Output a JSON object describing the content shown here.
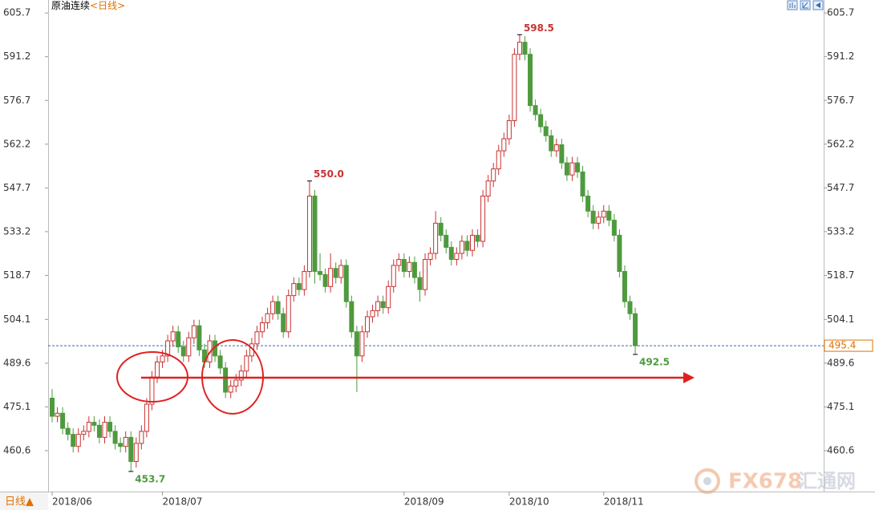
{
  "chart_data": {
    "type": "candlestick",
    "title": "原油连续",
    "subtitle": "<日线>",
    "period_button": "日线▲",
    "up_color": "#c83232",
    "down_color": "#4e9a3e",
    "ylim": [
      447.3,
      610.0
    ],
    "yticks": [
      605.7,
      591.2,
      576.7,
      562.2,
      547.7,
      533.2,
      518.7,
      504.1,
      489.6,
      475.1,
      460.6
    ],
    "current_price": 495.4,
    "categories": [
      "2018/06",
      null,
      null,
      null,
      null,
      null,
      null,
      null,
      null,
      null,
      null,
      null,
      null,
      null,
      null,
      null,
      null,
      null,
      null,
      null,
      null,
      "2018/07",
      null,
      null,
      null,
      null,
      null,
      null,
      null,
      null,
      null,
      null,
      null,
      null,
      null,
      null,
      null,
      null,
      null,
      null,
      null,
      null,
      null,
      null,
      null,
      null,
      null,
      null,
      null,
      null,
      null,
      null,
      null,
      null,
      null,
      null,
      null,
      null,
      null,
      null,
      null,
      null,
      null,
      null,
      null,
      null,
      null,
      "2018/09",
      null,
      null,
      null,
      null,
      null,
      null,
      null,
      null,
      null,
      null,
      null,
      null,
      null,
      null,
      null,
      null,
      null,
      null,
      null,
      "2018/10",
      null,
      null,
      null,
      null,
      null,
      null,
      null,
      null,
      null,
      null,
      null,
      null,
      null,
      null,
      null,
      null,
      null,
      "2018/11",
      null,
      null,
      null,
      null,
      null,
      null
    ],
    "open": [
      478,
      472,
      473,
      468,
      466,
      462,
      466,
      467,
      470,
      469,
      465,
      470,
      467,
      463,
      462,
      465,
      457,
      463,
      467,
      476,
      485,
      490,
      492,
      497,
      500,
      495,
      492,
      498,
      502,
      494,
      490,
      497,
      492,
      488,
      480,
      482,
      484,
      487,
      492,
      496,
      500,
      503,
      506,
      510,
      506,
      500,
      512,
      516,
      514,
      520,
      545,
      520,
      519,
      515,
      521,
      518,
      522,
      510,
      500,
      492,
      500,
      505,
      507,
      510,
      508,
      515,
      522,
      524,
      520,
      523,
      518,
      514,
      524,
      526,
      536,
      532,
      528,
      524,
      526,
      530,
      527,
      532,
      530,
      545,
      550,
      554,
      560,
      564,
      570,
      592,
      596,
      592,
      575,
      572,
      568,
      565,
      560,
      562,
      556,
      552,
      556,
      553,
      545,
      540,
      536,
      538,
      540,
      537,
      532,
      520,
      510,
      506
    ],
    "high": [
      481,
      475,
      475,
      470,
      468,
      468,
      469,
      472,
      472,
      471,
      472,
      472,
      469,
      465,
      467,
      467,
      465,
      469,
      478,
      487,
      492,
      494,
      499,
      502,
      502,
      497,
      500,
      504,
      504,
      496,
      499,
      499,
      494,
      490,
      484,
      486,
      489,
      494,
      498,
      502,
      505,
      508,
      512,
      512,
      508,
      514,
      518,
      518,
      522,
      550.0,
      547,
      526,
      521,
      526,
      523,
      524,
      524,
      512,
      502,
      502,
      507,
      509,
      512,
      512,
      517,
      524,
      526,
      526,
      525,
      525,
      520,
      526,
      528,
      540,
      538,
      534,
      530,
      528,
      532,
      532,
      534,
      534,
      547,
      552,
      556,
      562,
      566,
      572,
      594,
      598.5,
      598,
      594,
      577,
      574,
      570,
      567,
      564,
      564,
      558,
      558,
      558,
      555,
      547,
      542,
      540,
      542,
      542,
      539,
      534,
      522,
      512,
      508
    ],
    "low": [
      470,
      470,
      466,
      464,
      460,
      460,
      464,
      465,
      467,
      463,
      463,
      465,
      461,
      460,
      460,
      453.7,
      455,
      461,
      465,
      474,
      483,
      488,
      490,
      495,
      493,
      490,
      490,
      496,
      492,
      488,
      488,
      490,
      486,
      478,
      478,
      480,
      482,
      485,
      490,
      494,
      498,
      501,
      504,
      504,
      498,
      498,
      510,
      512,
      512,
      518,
      516,
      517,
      513,
      513,
      516,
      516,
      508,
      498,
      480,
      490,
      498,
      503,
      505,
      506,
      506,
      513,
      520,
      518,
      518,
      516,
      510,
      512,
      522,
      524,
      530,
      526,
      522,
      522,
      524,
      525,
      525,
      528,
      528,
      543,
      548,
      552,
      558,
      562,
      568,
      590,
      590,
      573,
      570,
      566,
      563,
      558,
      558,
      554,
      550,
      550,
      551,
      543,
      538,
      534,
      534,
      536,
      535,
      530,
      518,
      508,
      504,
      492.5
    ],
    "close": [
      472,
      473,
      468,
      466,
      462,
      466,
      467,
      470,
      469,
      465,
      470,
      467,
      463,
      462,
      465,
      457,
      463,
      467,
      476,
      485,
      490,
      492,
      497,
      500,
      495,
      492,
      498,
      502,
      494,
      490,
      497,
      492,
      488,
      480,
      482,
      484,
      487,
      492,
      496,
      500,
      503,
      506,
      510,
      506,
      500,
      512,
      516,
      514,
      520,
      545,
      520,
      519,
      515,
      521,
      518,
      522,
      510,
      500,
      492,
      500,
      505,
      507,
      510,
      508,
      515,
      522,
      524,
      520,
      523,
      518,
      514,
      524,
      526,
      536,
      532,
      528,
      524,
      526,
      530,
      527,
      532,
      530,
      545,
      550,
      554,
      560,
      564,
      570,
      592,
      596,
      592,
      575,
      572,
      568,
      565,
      560,
      562,
      556,
      552,
      556,
      553,
      545,
      540,
      536,
      538,
      540,
      537,
      532,
      520,
      510,
      506,
      495.4
    ],
    "annotations": [
      {
        "x": 15,
        "y": 453.7,
        "label": "453.7",
        "color": "#4e9a3e"
      },
      {
        "x": 49,
        "y": 550.0,
        "label": "550.0",
        "color": "#c83232"
      },
      {
        "x": 89,
        "y": 598.5,
        "label": "598.5",
        "color": "#c83232"
      },
      {
        "x": 111,
        "y": 492.5,
        "label": "492.5",
        "color": "#4e9a3e"
      }
    ],
    "watermark": {
      "brand": "FX678",
      "name": "汇通网"
    }
  }
}
